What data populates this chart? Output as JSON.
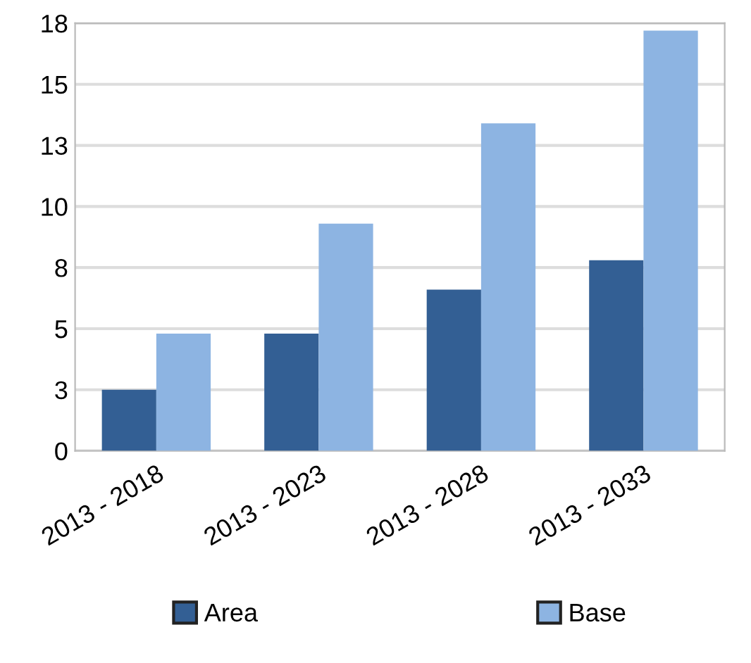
{
  "chart_data": {
    "type": "bar",
    "categories": [
      "2013 - 2018",
      "2013 - 2023",
      "2013 - 2028",
      "2013 - 2033"
    ],
    "series": [
      {
        "name": "Area",
        "color": "#335f94",
        "values": [
          2.5,
          4.8,
          6.6,
          7.8
        ]
      },
      {
        "name": "Base",
        "color": "#8db4e2",
        "values": [
          4.8,
          9.3,
          13.4,
          17.2
        ]
      }
    ],
    "ylim": [
      0,
      17.5
    ],
    "yticks": [
      0,
      {
        "value": 2.5,
        "label": "3"
      },
      5,
      {
        "value": 7.5,
        "label": "8"
      },
      10,
      {
        "value": 12.5,
        "label": "13"
      },
      15,
      {
        "value": 17.5,
        "label": "18"
      }
    ],
    "grid": "y",
    "legend": "bottom"
  }
}
